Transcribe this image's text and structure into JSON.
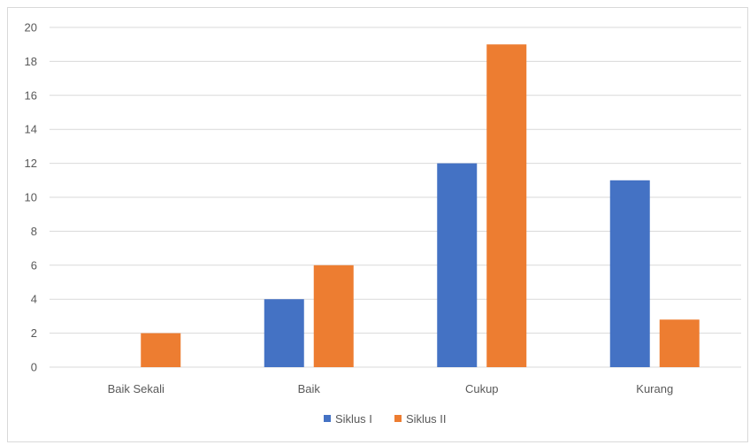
{
  "chart_data": {
    "type": "bar",
    "categories": [
      "Baik Sekali",
      "Baik",
      "Cukup",
      "Kurang"
    ],
    "series": [
      {
        "name": "Siklus I",
        "values": [
          0,
          4,
          12,
          11
        ],
        "color": "#4472c4"
      },
      {
        "name": "Siklus II",
        "values": [
          2,
          6,
          19,
          2.8
        ],
        "color": "#ed7d31"
      }
    ],
    "title": "",
    "xlabel": "",
    "ylabel": "",
    "ylim": [
      0,
      20
    ],
    "yticks": [
      0,
      2,
      4,
      6,
      8,
      10,
      12,
      14,
      16,
      18,
      20
    ],
    "grid": true,
    "legend_position": "bottom"
  }
}
